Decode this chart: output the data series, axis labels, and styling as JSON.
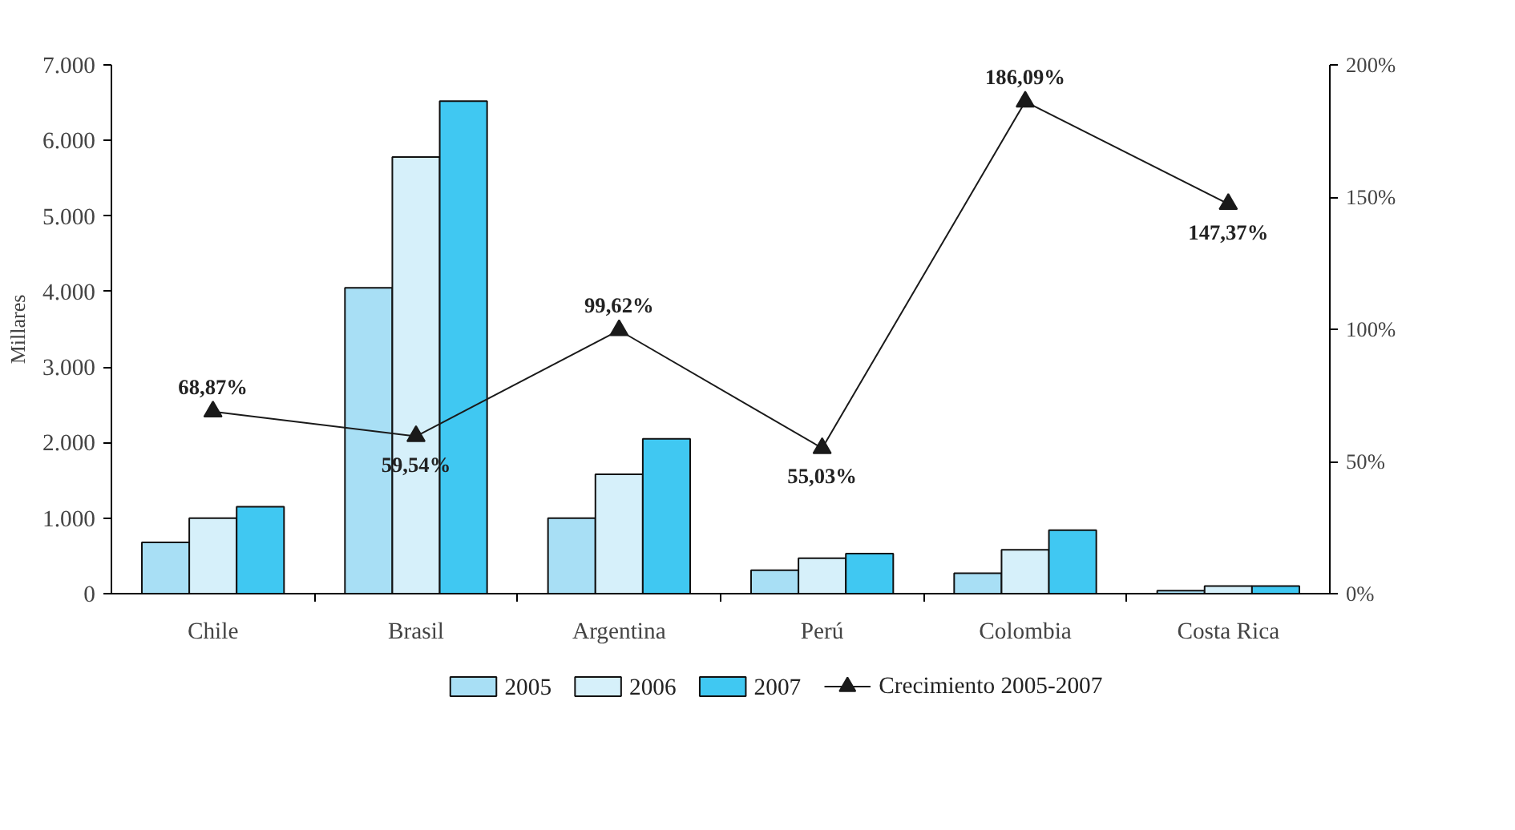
{
  "chart_data": {
    "type": "bar",
    "ylabel": "Millares",
    "categories": [
      "Chile",
      "Brasil",
      "Argentina",
      "Perú",
      "Colombia",
      "Costa Rica"
    ],
    "ylim": [
      0,
      7000
    ],
    "yticks": [
      0,
      {
        "value": 1000,
        "label": "1.000"
      },
      {
        "value": 2000,
        "label": "2.000"
      },
      {
        "value": 3000,
        "label": "3.000"
      },
      {
        "value": 4000,
        "label": "4.000"
      },
      {
        "value": 5000,
        "label": "5.000"
      },
      {
        "value": 6000,
        "label": "6.000"
      },
      {
        "value": 7000,
        "label": "7.000"
      }
    ],
    "y2lim": [
      0,
      200
    ],
    "y2ticks": [
      {
        "value": 0,
        "label": "0%"
      },
      {
        "value": 50,
        "label": "50%"
      },
      {
        "value": 100,
        "label": "100%"
      },
      {
        "value": 150,
        "label": "150%"
      },
      {
        "value": 200,
        "label": "200%"
      }
    ],
    "grid": false,
    "legend": "bottom",
    "series": [
      {
        "name": "2005",
        "color": "#a8dff5",
        "values": [
          680,
          4050,
          1000,
          310,
          270,
          40
        ]
      },
      {
        "name": "2006",
        "color": "#d6f0fa",
        "values": [
          1000,
          5780,
          1580,
          470,
          580,
          100
        ]
      },
      {
        "name": "2007",
        "color": "#40c8f2",
        "values": [
          1150,
          6520,
          2050,
          530,
          840,
          100
        ]
      },
      {
        "name": "Crecimiento 2005-2007",
        "type": "line",
        "axis": "y2",
        "color": "#1a1a1a",
        "marker": "triangle",
        "values": [
          68.87,
          59.54,
          99.62,
          55.03,
          186.09,
          147.37
        ],
        "value_labels": [
          "68,87%",
          "59,54%",
          "99,62%",
          "55,03%",
          "186,09%",
          "147,37%"
        ]
      }
    ]
  }
}
